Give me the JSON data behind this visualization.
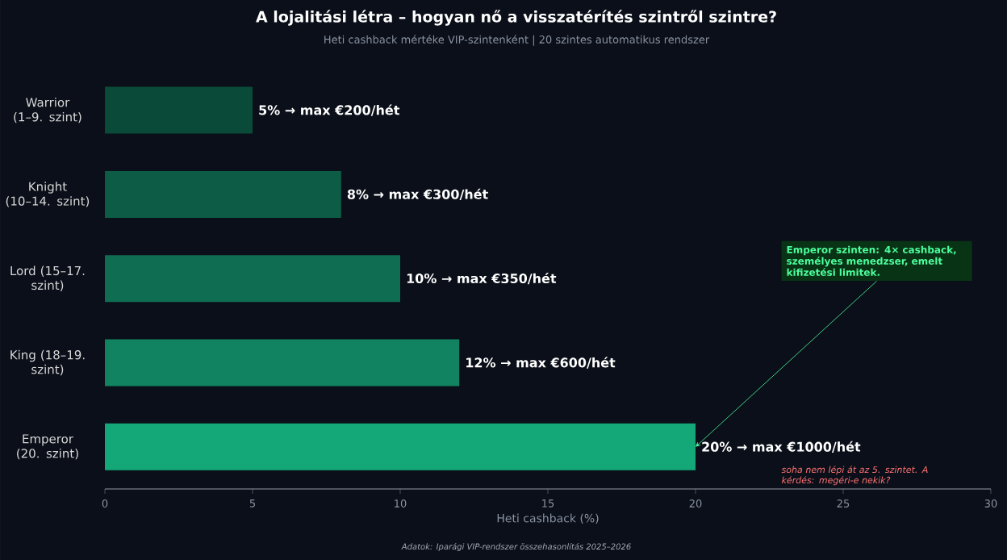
{
  "chart_data": {
    "type": "bar",
    "orientation": "horizontal",
    "title": "A lojalitási létra – hogyan nő a visszatérítés szintről szintre?",
    "subtitle": "Heti cashback mértéke VIP-szintenként | 20 szintes automatikus rendszer",
    "xlabel": "Heti cashback (%)",
    "categories": [
      "Warrior (1–9. szint)",
      "Knight (10–14. szint)",
      "Lord (15–17. szint)",
      "King (18–19. szint)",
      "Emperor (20. szint)"
    ],
    "values": [
      5,
      8,
      10,
      12,
      20
    ],
    "colors": [
      "#0a4a38",
      "#0c5c46",
      "#0f6e52",
      "#118360",
      "#14a878"
    ],
    "value_labels": [
      "5%  →  max €200/hét",
      "8%  →  max €300/hét",
      "10%  →  max €350/hét",
      "12%  →  max €600/hét",
      "20%  →  max €1000/hét"
    ],
    "xlim": [
      0,
      30
    ],
    "xticks": [
      0,
      5,
      10,
      15,
      20,
      25,
      30
    ],
    "grid": false,
    "annotations": [
      {
        "text": "Emperor szinten: 4× cashback, személyes menedzser, emelt kifizetési limitek.",
        "x": 20,
        "y": "Emperor (20. szint)"
      },
      "soha nem lépi át az 5. szintet. A kérdés: megéri-e nekik?",
      "Adatok: Iparági VIP-rendszer összehasonlítás 2025–2026"
    ]
  }
}
